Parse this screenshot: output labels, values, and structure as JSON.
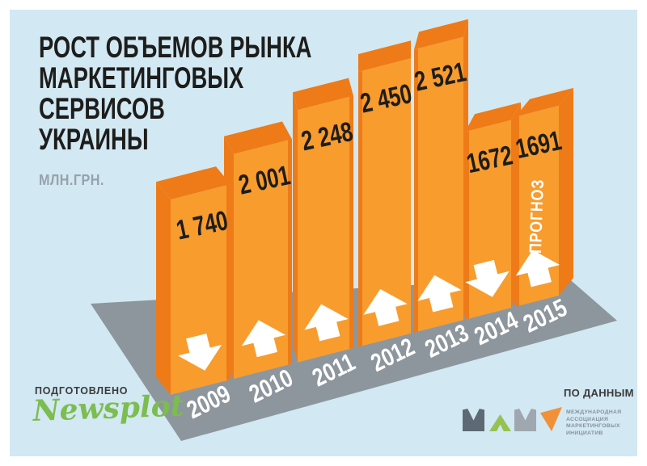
{
  "header": {
    "title_lines": [
      "РОСТ ОБЪЕМОВ РЫНКА",
      "МАРКЕТИНГОВЫХ",
      "СЕРВИСОВ",
      "УКРАИНЫ"
    ],
    "units": "МЛН.ГРН."
  },
  "chart_data": {
    "type": "bar",
    "title": "РОСТ ОБЪЕМОВ РЫНКА МАРКЕТИНГОВЫХ СЕРВИСОВ УКРАИНЫ",
    "ylabel": "МЛН.ГРН.",
    "categories": [
      "2009",
      "2010",
      "2011",
      "2012",
      "2013",
      "2014",
      "2015"
    ],
    "values": [
      1740,
      2001,
      2248,
      2450,
      2521,
      1672,
      1691
    ],
    "value_labels": [
      "1 740",
      "2 001",
      "2 248",
      "2 450",
      "2 521",
      "1672",
      "1691"
    ],
    "trend_arrows": [
      "down",
      "up",
      "up",
      "up",
      "up",
      "down",
      "up"
    ],
    "annotations": [
      {
        "category": "2015",
        "label": "ПРОГНОЗ"
      }
    ],
    "legend": "none",
    "grid": false,
    "colors": {
      "bar_front": "#f89c2e",
      "bar_side": "#ee7b17",
      "platform": "#8d969d",
      "value_text": "#1d1d1b",
      "year_text": "#ffffff",
      "arrow": "#ffffff",
      "background": "#d2e8f3"
    }
  },
  "footer": {
    "prepared_label": "ПОДГОТОВЛЕНО",
    "prepared_brand": "Newsplot",
    "source_label": "ПО ДАННЫМ",
    "logo_org_lines": [
      "МЕЖДУНАРОДНАЯ",
      "АССОЦИАЦИЯ",
      "МАРКЕТИНГОВЫХ",
      "ИНИЦИАТИВ"
    ],
    "logo_colors": {
      "m1": "#5d6a74",
      "a": "#95c353",
      "m2": "#9fa8b0",
      "i": "#f0913a"
    }
  }
}
